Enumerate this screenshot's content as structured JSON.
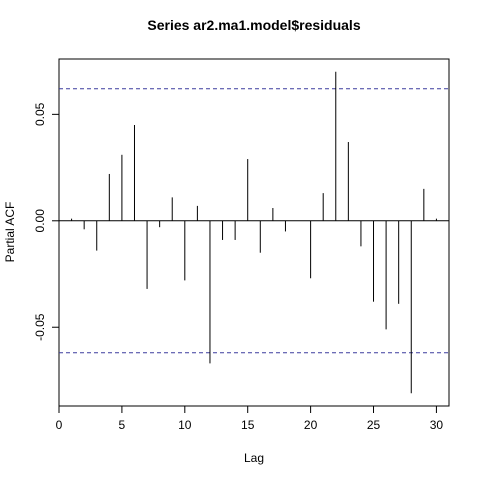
{
  "chart_data": {
    "type": "bar",
    "title": "Series  ar2.ma1.model$residuals",
    "xlabel": "Lag",
    "ylabel": "Partial ACF",
    "xlim": [
      0,
      31
    ],
    "ylim": [
      -0.087,
      0.076
    ],
    "x_ticks": [
      0,
      5,
      10,
      15,
      20,
      25,
      30
    ],
    "x_tick_labels": [
      "0",
      "5",
      "10",
      "15",
      "20",
      "25",
      "30"
    ],
    "y_ticks": [
      -0.05,
      0.0,
      0.05
    ],
    "y_tick_labels": [
      "-0.05",
      "0.00",
      "0.05"
    ],
    "confidence_bound": 0.062,
    "lags": [
      1,
      2,
      3,
      4,
      5,
      6,
      7,
      8,
      9,
      10,
      11,
      12,
      13,
      14,
      15,
      16,
      17,
      18,
      19,
      20,
      21,
      22,
      23,
      24,
      25,
      26,
      27,
      28,
      29,
      30
    ],
    "values": [
      0.001,
      -0.004,
      -0.014,
      0.022,
      0.031,
      0.045,
      -0.032,
      -0.003,
      0.011,
      -0.028,
      0.007,
      -0.067,
      -0.009,
      -0.009,
      0.029,
      -0.015,
      0.006,
      -0.005,
      0.0,
      -0.027,
      0.013,
      0.07,
      0.037,
      -0.012,
      -0.038,
      -0.051,
      -0.039,
      -0.081,
      0.015,
      0.001
    ],
    "grid": false,
    "colors": {
      "bars": "#000000",
      "bound_line": "#3b3b9e",
      "axis": "#000000"
    }
  }
}
